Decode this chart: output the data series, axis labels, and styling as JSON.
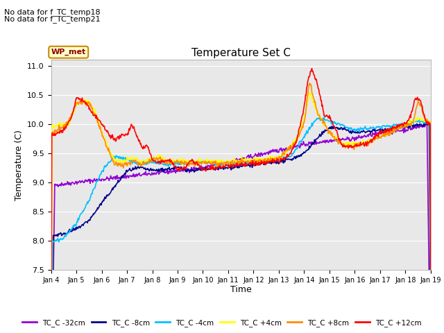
{
  "title": "Temperature Set C",
  "xlabel": "Time",
  "ylabel": "Temperature (C)",
  "ylim": [
    7.5,
    11.1
  ],
  "annotation1": "No data for f_TC_temp18",
  "annotation2": "No data for f_TC_temp21",
  "wp_met_label": "WP_met",
  "legend_entries": [
    "TC_C -32cm",
    "TC_C -8cm",
    "TC_C -4cm",
    "TC_C +4cm",
    "TC_C +8cm",
    "TC_C +12cm"
  ],
  "legend_colors": [
    "#9400D3",
    "#00008B",
    "#00BFFF",
    "#FFFF00",
    "#FF8C00",
    "#FF0000"
  ],
  "xtick_labels": [
    "Jan 4",
    "Jan 5",
    "Jan 6",
    "Jan 7",
    "Jan 8",
    "Jan 9",
    "Jan 10",
    "Jan 11",
    "Jan 12",
    "Jan 13",
    "Jan 14",
    "Jan 15",
    "Jan 16",
    "Jan 17",
    "Jan 18",
    "Jan 19"
  ],
  "bg_color": "#E8E8E8",
  "fig_bg_color": "#FFFFFF",
  "grid_color": "#FFFFFF",
  "linewidth": 1.2
}
